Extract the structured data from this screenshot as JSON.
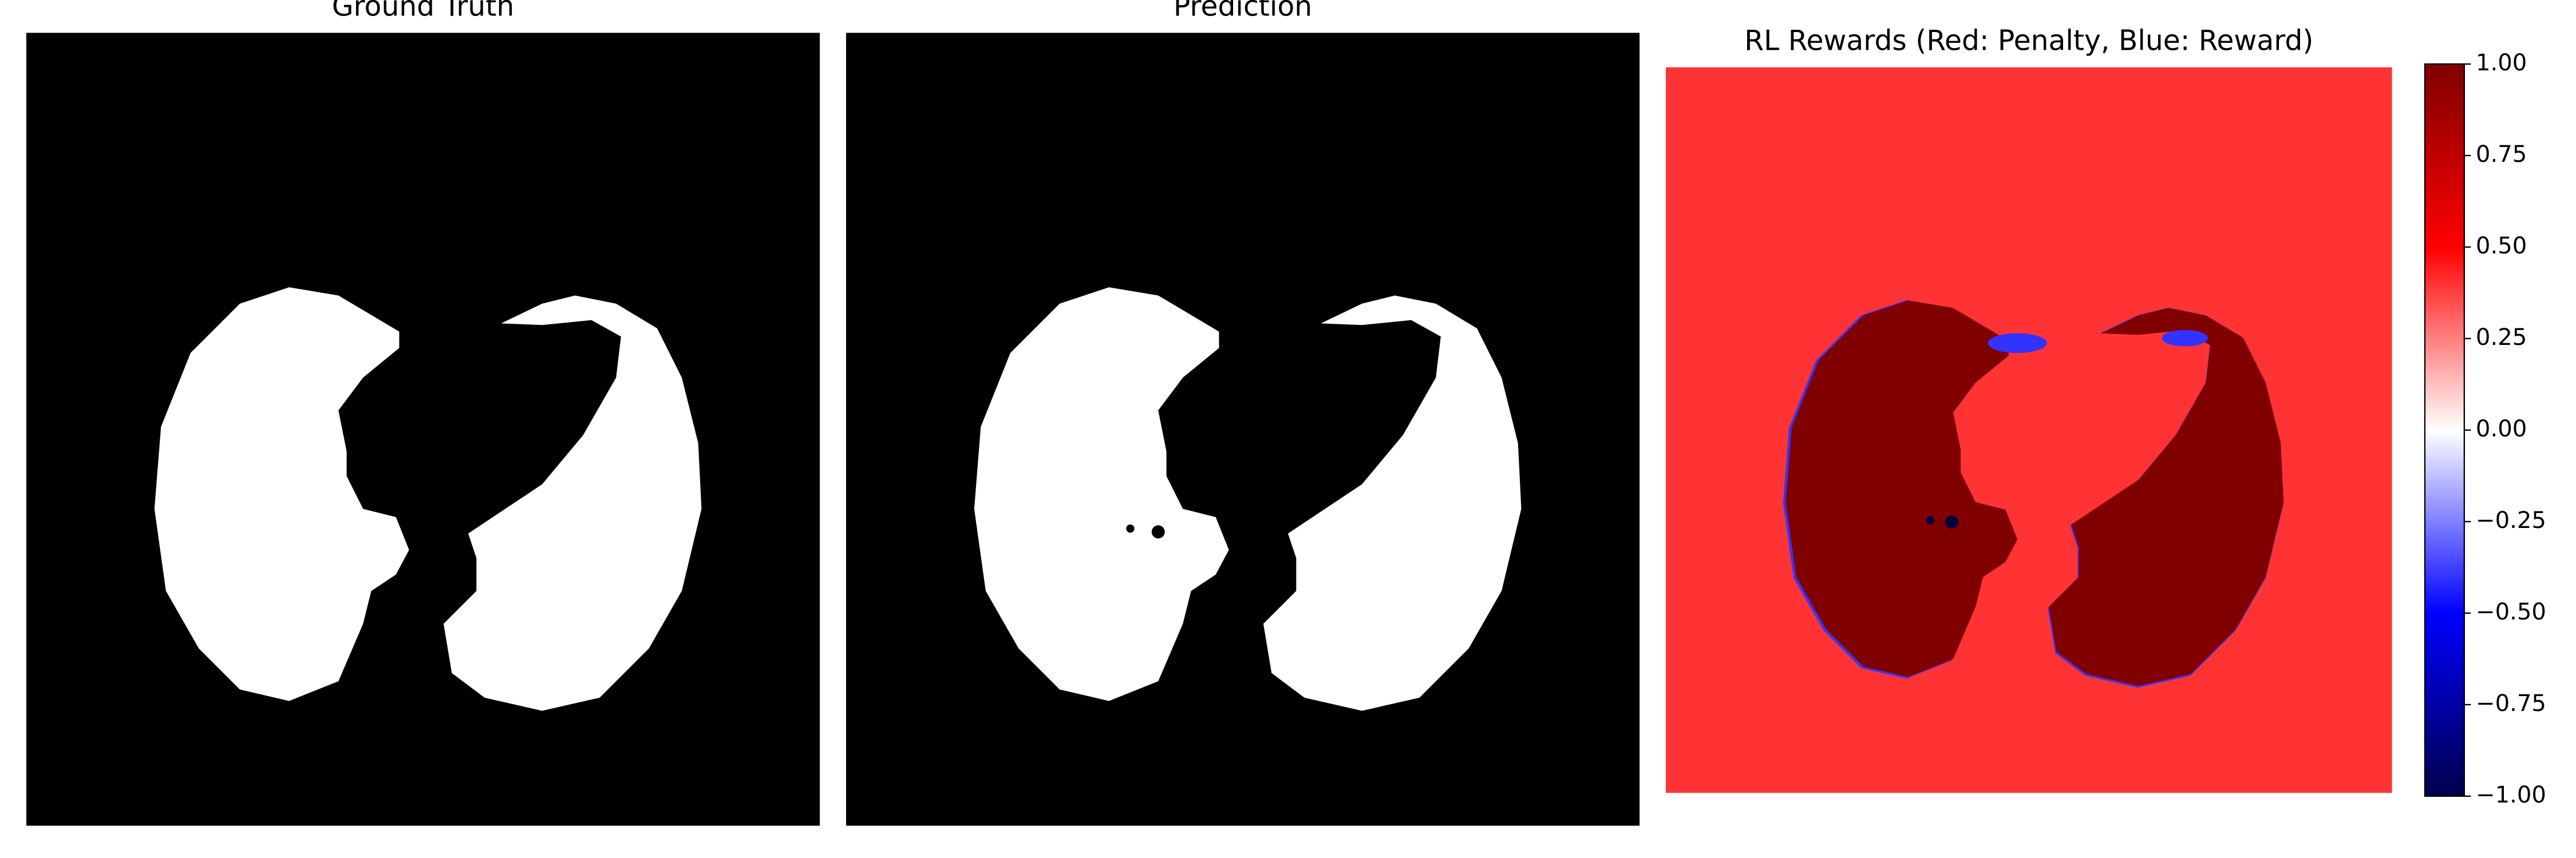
{
  "chart_data": {
    "type": "image-panels",
    "panels": [
      {
        "title": "Ground Truth"
      },
      {
        "title": "Prediction"
      },
      {
        "title": "RL Rewards (Red: Penalty, Blue: Reward)"
      }
    ],
    "colorbar": {
      "ylim": [
        -1,
        1
      ],
      "yticks": [
        {
          "value": 1,
          "label": "1.00"
        },
        {
          "value": 0.75,
          "label": "0.75"
        },
        {
          "value": 0.5,
          "label": "0.50"
        },
        {
          "value": 0.25,
          "label": "0.25"
        },
        {
          "value": 0,
          "label": "0.00"
        },
        {
          "value": -0.25,
          "label": "−0.25"
        },
        {
          "value": -0.5,
          "label": "−0.50"
        },
        {
          "value": -0.75,
          "label": "−0.75"
        },
        {
          "value": -1,
          "label": "−1.00"
        }
      ]
    }
  }
}
